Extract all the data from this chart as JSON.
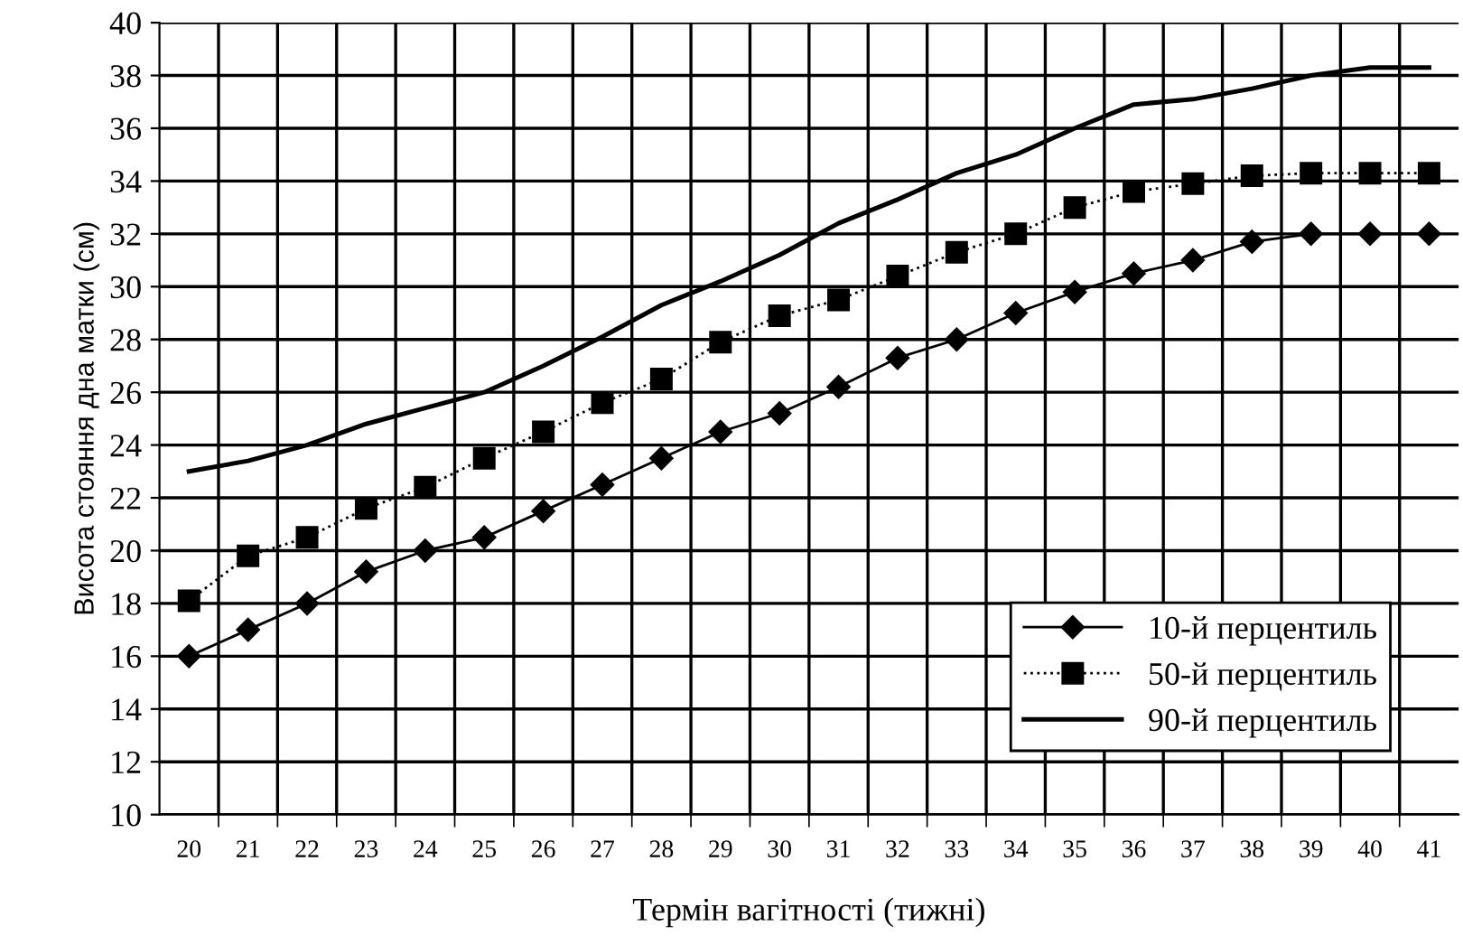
{
  "chart_data": {
    "type": "line",
    "xlabel": "Термін вагітності (тижні)",
    "ylabel": "Висота стояння дна матки (см)",
    "categories": [
      "20",
      "21",
      "22",
      "23",
      "24",
      "25",
      "26",
      "27",
      "28",
      "29",
      "30",
      "31",
      "32",
      "33",
      "34",
      "35",
      "36",
      "37",
      "38",
      "39",
      "40",
      "41"
    ],
    "series": [
      {
        "name": "10-й перцентиль",
        "color": "#000000",
        "marker": "diamond",
        "line_style": "solid",
        "values": [
          16,
          17,
          18,
          19.2,
          20,
          20.5,
          21.5,
          22.5,
          23.5,
          24.5,
          25.2,
          26.2,
          27.3,
          28,
          29,
          29.8,
          30.5,
          31,
          31.7,
          32,
          32,
          32
        ]
      },
      {
        "name": "50-й перцентиль",
        "color": "#000000",
        "marker": "square",
        "line_style": "dotted",
        "values": [
          18.1,
          19.8,
          20.5,
          21.6,
          22.4,
          23.5,
          24.5,
          25.6,
          26.5,
          27.9,
          28.9,
          29.5,
          30.4,
          31.3,
          32,
          33,
          33.6,
          33.9,
          34.2,
          34.3,
          34.3,
          34.3
        ]
      },
      {
        "name": "90-й перцентиль",
        "color": "#000000",
        "marker": "none",
        "line_style": "solid",
        "values": [
          23,
          23.4,
          24,
          24.8,
          25.4,
          26,
          27,
          28.1,
          29.3,
          30.2,
          31.2,
          32.4,
          33.3,
          34.3,
          35,
          36,
          36.9,
          37.1,
          37.5,
          38,
          38.3,
          38.3
        ]
      }
    ],
    "ylim": [
      10,
      40
    ],
    "yticks": [
      10,
      12,
      14,
      16,
      18,
      20,
      22,
      24,
      26,
      28,
      30,
      32,
      34,
      36,
      38,
      40
    ],
    "grid": true,
    "legend": "bottom right"
  }
}
